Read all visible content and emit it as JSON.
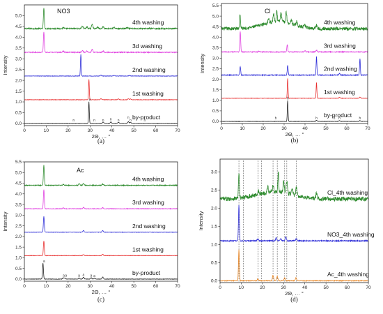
{
  "chart_data": [
    {
      "id": "a",
      "type": "line",
      "caption": "(a)",
      "title": "NO3",
      "xlabel": "2Θ, … °",
      "ylabel": "Intensity",
      "xlim": [
        0,
        70
      ],
      "ylim": [
        -0.1,
        5.5
      ],
      "xticks": [
        "0",
        "10",
        "20",
        "30",
        "40",
        "50",
        "60",
        "70"
      ],
      "yticks": [
        "0.0",
        "0.5",
        "1.0",
        "1.5",
        "2.0",
        "2.5",
        "3.0",
        "3.5",
        "4.0",
        "4.5",
        "5.0"
      ],
      "series": [
        {
          "name": "4th washing",
          "color": "#2e8b2e",
          "baseline": 4.4,
          "noise": 0.03,
          "peaks": [
            [
              8.9,
              0.95,
              0.3
            ],
            [
              17.8,
              0.05,
              0.4
            ],
            [
              26.5,
              0.1,
              0.5
            ],
            [
              28.6,
              0.08,
              0.4
            ],
            [
              31.0,
              0.22,
              0.4
            ],
            [
              33.5,
              0.07,
              0.4
            ],
            [
              36.0,
              0.1,
              0.4
            ],
            [
              41.0,
              0.05,
              0.5
            ],
            [
              47.0,
              0.04,
              0.5
            ]
          ]
        },
        {
          "name": "3d washing",
          "color": "#e040e0",
          "baseline": 3.3,
          "noise": 0.02,
          "peaks": [
            [
              8.9,
              0.95,
              0.3
            ],
            [
              17.8,
              0.05,
              0.4
            ],
            [
              26.5,
              0.08,
              0.5
            ],
            [
              28.6,
              0.06,
              0.4
            ],
            [
              31.0,
              0.14,
              0.4
            ],
            [
              36.0,
              0.06,
              0.4
            ]
          ]
        },
        {
          "name": "2nd washing",
          "color": "#2f2fd8",
          "baseline": 2.2,
          "noise": 0.01,
          "peaks": [
            [
              25.8,
              1.0,
              0.25
            ],
            [
              35.0,
              0.04,
              0.4
            ],
            [
              41.0,
              0.03,
              0.4
            ],
            [
              48.0,
              0.03,
              0.4
            ]
          ]
        },
        {
          "name": "1st washing",
          "color": "#e83030",
          "baseline": 1.1,
          "noise": 0.01,
          "peaks": [
            [
              29.5,
              0.95,
              0.25
            ],
            [
              35.0,
              0.05,
              0.4
            ],
            [
              43.0,
              0.04,
              0.4
            ],
            [
              47.5,
              0.05,
              0.4
            ],
            [
              48.5,
              0.04,
              0.4
            ]
          ]
        },
        {
          "name": "by-product",
          "color": "#222222",
          "baseline": 0.0,
          "noise": 0.008,
          "peaks": [
            [
              29.5,
              1.0,
              0.25
            ],
            [
              36.0,
              0.06,
              0.4
            ],
            [
              39.5,
              0.07,
              0.4
            ],
            [
              43.0,
              0.06,
              0.4
            ],
            [
              47.5,
              0.08,
              0.4
            ],
            [
              48.5,
              0.06,
              0.4
            ]
          ]
        }
      ],
      "peak_marks": [
        {
          "x": 22.5,
          "y": 0.1,
          "label": "n"
        },
        {
          "x": 30.0,
          "y": 1.05,
          "label": "n"
        },
        {
          "x": 32.0,
          "y": 0.1,
          "label": "n"
        },
        {
          "x": 36.0,
          "y": 0.1,
          "label": "n"
        },
        {
          "x": 39.5,
          "y": 0.15,
          "label": "n"
        },
        {
          "x": 43.0,
          "y": 0.1,
          "label": "n"
        },
        {
          "x": 47.5,
          "y": 0.22,
          "label": "n"
        },
        {
          "x": 48.5,
          "y": 0.1,
          "label": "n"
        },
        {
          "x": 55.0,
          "y": 0.1,
          "label": "n"
        }
      ]
    },
    {
      "id": "b",
      "type": "line",
      "caption": "(b)",
      "title": "Cl",
      "xlabel": "2Θ, … °",
      "ylabel": "Intensity",
      "xlim": [
        0,
        70
      ],
      "ylim": [
        -0.1,
        5.6
      ],
      "xticks": [
        "0",
        "10",
        "20",
        "30",
        "40",
        "50",
        "60",
        "70"
      ],
      "yticks": [
        "0.0",
        "0.5",
        "1.0",
        "1.5",
        "2.0",
        "2.5",
        "3.0",
        "3.5",
        "4.0",
        "4.5",
        "5.0",
        "5.5"
      ],
      "series": [
        {
          "name": "4th washing",
          "color": "#2e8b2e",
          "baseline": 4.4,
          "noise": 0.08,
          "hump": [
            27,
            0.35,
            10
          ],
          "peaks": [
            [
              8.9,
              0.7,
              0.3
            ],
            [
              22.5,
              0.2,
              0.4
            ],
            [
              25.0,
              0.35,
              0.4
            ],
            [
              26.5,
              0.55,
              0.3
            ],
            [
              28.5,
              0.4,
              0.4
            ],
            [
              31.0,
              0.5,
              0.4
            ],
            [
              33.5,
              0.2,
              0.4
            ],
            [
              36.0,
              0.2,
              0.4
            ],
            [
              40.0,
              0.1,
              0.5
            ],
            [
              45.5,
              0.15,
              0.5
            ]
          ]
        },
        {
          "name": "3rd washing",
          "color": "#e040e0",
          "baseline": 3.3,
          "noise": 0.02,
          "peaks": [
            [
              9.0,
              0.95,
              0.3
            ],
            [
              18.0,
              0.05,
              0.4
            ],
            [
              31.5,
              0.35,
              0.3
            ],
            [
              40.0,
              0.05,
              0.4
            ],
            [
              45.5,
              0.08,
              0.4
            ]
          ]
        },
        {
          "name": "2nd washing",
          "color": "#2f2fd8",
          "baseline": 2.2,
          "noise": 0.02,
          "peaks": [
            [
              9.0,
              0.4,
              0.3
            ],
            [
              31.7,
              0.45,
              0.3
            ],
            [
              45.5,
              0.9,
              0.25
            ],
            [
              56.5,
              0.08,
              0.4
            ],
            [
              66.3,
              0.8,
              0.25
            ]
          ]
        },
        {
          "name": "1st washing",
          "color": "#e83030",
          "baseline": 1.1,
          "noise": 0.01,
          "peaks": [
            [
              31.7,
              0.95,
              0.25
            ],
            [
              45.5,
              0.75,
              0.25
            ],
            [
              56.5,
              0.05,
              0.4
            ],
            [
              66.3,
              0.05,
              0.4
            ]
          ]
        },
        {
          "name": "by-product",
          "color": "#222222",
          "baseline": 0.0,
          "noise": 0.008,
          "peaks": [
            [
              31.7,
              1.0,
              0.25
            ],
            [
              45.5,
              0.06,
              0.4
            ],
            [
              56.5,
              0.04,
              0.4
            ],
            [
              66.3,
              0.04,
              0.4
            ]
          ]
        }
      ],
      "peak_marks": [
        {
          "x": 26.0,
          "y": 0.1,
          "label": "h"
        },
        {
          "x": 31.7,
          "y": 1.05,
          "label": "h"
        },
        {
          "x": 45.5,
          "y": 0.1,
          "label": "h"
        },
        {
          "x": 54.0,
          "y": 0.1,
          "label": "h"
        },
        {
          "x": 56.5,
          "y": 0.1,
          "label": "h"
        },
        {
          "x": 66.3,
          "y": 0.1,
          "label": "h"
        }
      ]
    },
    {
      "id": "c",
      "type": "line",
      "caption": "(c)",
      "title": "Ac",
      "xlabel": "2Θ, … °",
      "ylabel": "Intensity",
      "xlim": [
        0,
        70
      ],
      "ylim": [
        -0.1,
        5.5
      ],
      "xticks": [
        "0",
        "10",
        "20",
        "30",
        "40",
        "50",
        "60",
        "70"
      ],
      "yticks": [
        "0.0",
        "0.5",
        "1.0",
        "1.5",
        "2.0",
        "2.5",
        "3.0",
        "3.5",
        "4.0",
        "4.5",
        "5.0",
        "5.5"
      ],
      "series": [
        {
          "name": "4th washing",
          "color": "#2e8b2e",
          "baseline": 4.4,
          "noise": 0.02,
          "peaks": [
            [
              8.9,
              0.95,
              0.3
            ],
            [
              17.8,
              0.05,
              0.4
            ],
            [
              25.0,
              0.07,
              0.4
            ],
            [
              27.0,
              0.08,
              0.4
            ],
            [
              35.8,
              0.06,
              0.4
            ]
          ]
        },
        {
          "name": "3rd washing",
          "color": "#e040e0",
          "baseline": 3.3,
          "noise": 0.015,
          "peaks": [
            [
              8.9,
              0.9,
              0.3
            ],
            [
              17.8,
              0.04,
              0.4
            ],
            [
              27.0,
              0.06,
              0.4
            ],
            [
              35.8,
              0.05,
              0.4
            ]
          ]
        },
        {
          "name": "2nd washing",
          "color": "#2f2fd8",
          "baseline": 2.2,
          "noise": 0.01,
          "peaks": [
            [
              8.9,
              0.75,
              0.3
            ],
            [
              27.0,
              0.08,
              0.4
            ],
            [
              35.8,
              0.08,
              0.4
            ]
          ]
        },
        {
          "name": "1st washing",
          "color": "#e83030",
          "baseline": 1.1,
          "noise": 0.01,
          "peaks": [
            [
              8.9,
              0.7,
              0.3
            ],
            [
              27.0,
              0.05,
              0.4
            ],
            [
              35.8,
              0.07,
              0.4
            ]
          ]
        },
        {
          "name": "by-product",
          "color": "#222222",
          "baseline": 0.0,
          "noise": 0.01,
          "peaks": [
            [
              8.5,
              0.75,
              0.3
            ],
            [
              17.8,
              0.06,
              0.4
            ],
            [
              18.5,
              0.05,
              0.4
            ],
            [
              25.0,
              0.05,
              0.4
            ],
            [
              27.0,
              0.08,
              0.4
            ],
            [
              30.5,
              0.06,
              0.4
            ],
            [
              32.0,
              0.04,
              0.4
            ],
            [
              35.8,
              0.1,
              0.4
            ]
          ]
        }
      ],
      "peak_marks": [
        {
          "x": 9.0,
          "y": 0.78,
          "label": "a"
        },
        {
          "x": 18.0,
          "y": 0.12,
          "label": "a"
        },
        {
          "x": 19.0,
          "y": 0.12,
          "label": "a"
        },
        {
          "x": 25.0,
          "y": 0.12,
          "label": "a"
        },
        {
          "x": 27.0,
          "y": 0.15,
          "label": "a"
        },
        {
          "x": 30.5,
          "y": 0.12,
          "label": "a"
        },
        {
          "x": 32.0,
          "y": 0.1,
          "label": "a"
        }
      ]
    },
    {
      "id": "d",
      "type": "line",
      "caption": "(d)",
      "title": "",
      "xlabel": "2Θ, … °",
      "ylabel": "Intensity",
      "xlim": [
        0,
        70
      ],
      "ylim": [
        -0.05,
        3.35
      ],
      "xticks": [
        "0",
        "10",
        "20",
        "30",
        "40",
        "50",
        "60",
        "70"
      ],
      "yticks": [
        "0.0",
        "0.5",
        "1.0",
        "1.5",
        "2.0",
        "2.5",
        "3.0"
      ],
      "series": [
        {
          "name": "Cl_4th washing",
          "color": "#2e8b2e",
          "baseline": 2.25,
          "noise": 0.06,
          "hump": [
            26,
            0.2,
            12
          ],
          "peaks": [
            [
              8.9,
              0.7,
              0.3
            ],
            [
              18.0,
              0.1,
              0.4
            ],
            [
              22.5,
              0.15,
              0.4
            ],
            [
              25.0,
              0.2,
              0.4
            ],
            [
              27.5,
              0.55,
              0.3
            ],
            [
              30.0,
              0.3,
              0.4
            ],
            [
              31.5,
              0.35,
              0.4
            ],
            [
              34.0,
              0.15,
              0.4
            ],
            [
              36.0,
              0.2,
              0.4
            ],
            [
              45.5,
              0.15,
              0.4
            ]
          ]
        },
        {
          "name": "NO3_4th washing",
          "color": "#2f2fd8",
          "baseline": 1.1,
          "noise": 0.015,
          "peaks": [
            [
              8.9,
              1.0,
              0.3
            ],
            [
              17.8,
              0.05,
              0.4
            ],
            [
              26.5,
              0.08,
              0.4
            ],
            [
              28.6,
              0.06,
              0.4
            ],
            [
              31.0,
              0.12,
              0.4
            ],
            [
              36.0,
              0.06,
              0.4
            ]
          ]
        },
        {
          "name": "Ac_4th washing",
          "color": "#e6821e",
          "baseline": 0.0,
          "noise": 0.01,
          "peaks": [
            [
              8.9,
              0.85,
              0.3
            ],
            [
              17.8,
              0.05,
              0.4
            ],
            [
              25.0,
              0.15,
              0.4
            ],
            [
              27.0,
              0.12,
              0.4
            ],
            [
              30.5,
              0.08,
              0.4
            ],
            [
              35.8,
              0.08,
              0.4
            ]
          ]
        }
      ],
      "reference_lines_x": [
        8.9,
        11.0,
        18.0,
        19.5,
        25.0,
        27.0,
        30.5,
        31.5,
        36.0
      ]
    }
  ]
}
